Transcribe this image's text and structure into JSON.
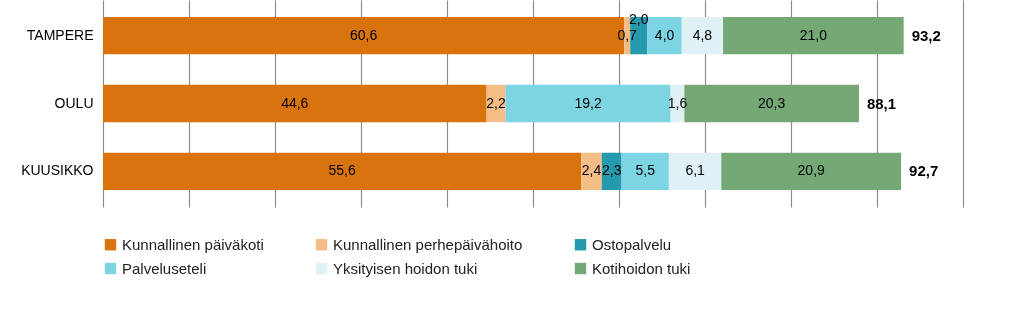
{
  "chart_data": {
    "type": "bar",
    "orientation": "horizontal",
    "stacked": true,
    "categories": [
      "TAMPERE",
      "OULU",
      "KUUSIKKO"
    ],
    "series": [
      {
        "name": "Kunnallinen päiväkoti",
        "color": "#d9730d",
        "values": [
          60.6,
          44.6,
          55.6
        ],
        "value_labels": [
          "60,6",
          "44,6",
          "55,6"
        ]
      },
      {
        "name": "Kunnallinen perhepäivähoito",
        "color": "#f5bd86",
        "values": [
          0.7,
          2.2,
          2.4
        ],
        "value_labels": [
          "0,7",
          "2,2",
          "2,4"
        ]
      },
      {
        "name": "Ostopalvelu",
        "color": "#2599ad",
        "values": [
          2.0,
          null,
          2.3
        ],
        "value_labels": [
          "2,0",
          null,
          "2,3"
        ]
      },
      {
        "name": "Palveluseteli",
        "color": "#7dd4e3",
        "values": [
          4.0,
          19.2,
          5.5
        ],
        "value_labels": [
          "4,0",
          "19,2",
          "5,5"
        ]
      },
      {
        "name": "Yksityisen hoidon tuki",
        "color": "#dff1f5",
        "values": [
          4.8,
          1.6,
          6.1
        ],
        "value_labels": [
          "4,8",
          "1,6",
          "6,1"
        ]
      },
      {
        "name": "Kotihoidon tuki",
        "color": "#74a874",
        "values": [
          21.0,
          20.3,
          20.9
        ],
        "value_labels": [
          "21,0",
          "20,3",
          "20,9"
        ]
      }
    ],
    "totals": [
      "93,2",
      "88,1",
      "92,7"
    ],
    "xlim": [
      0,
      100
    ],
    "xticks": [
      {
        "value": 0,
        "label": null
      },
      {
        "value": 10,
        "label": null
      },
      {
        "value": 20,
        "label": null
      },
      {
        "value": 30,
        "label": null
      },
      {
        "value": 40,
        "label": null
      },
      {
        "value": 50,
        "label": null
      },
      {
        "value": 60,
        "label": null
      },
      {
        "value": 70,
        "label": null
      },
      {
        "value": 80,
        "label": null
      },
      {
        "value": 90,
        "label": null
      },
      {
        "value": 100,
        "label": null
      }
    ],
    "tick_labels": "y",
    "grid": "x",
    "legend": "bottom"
  }
}
